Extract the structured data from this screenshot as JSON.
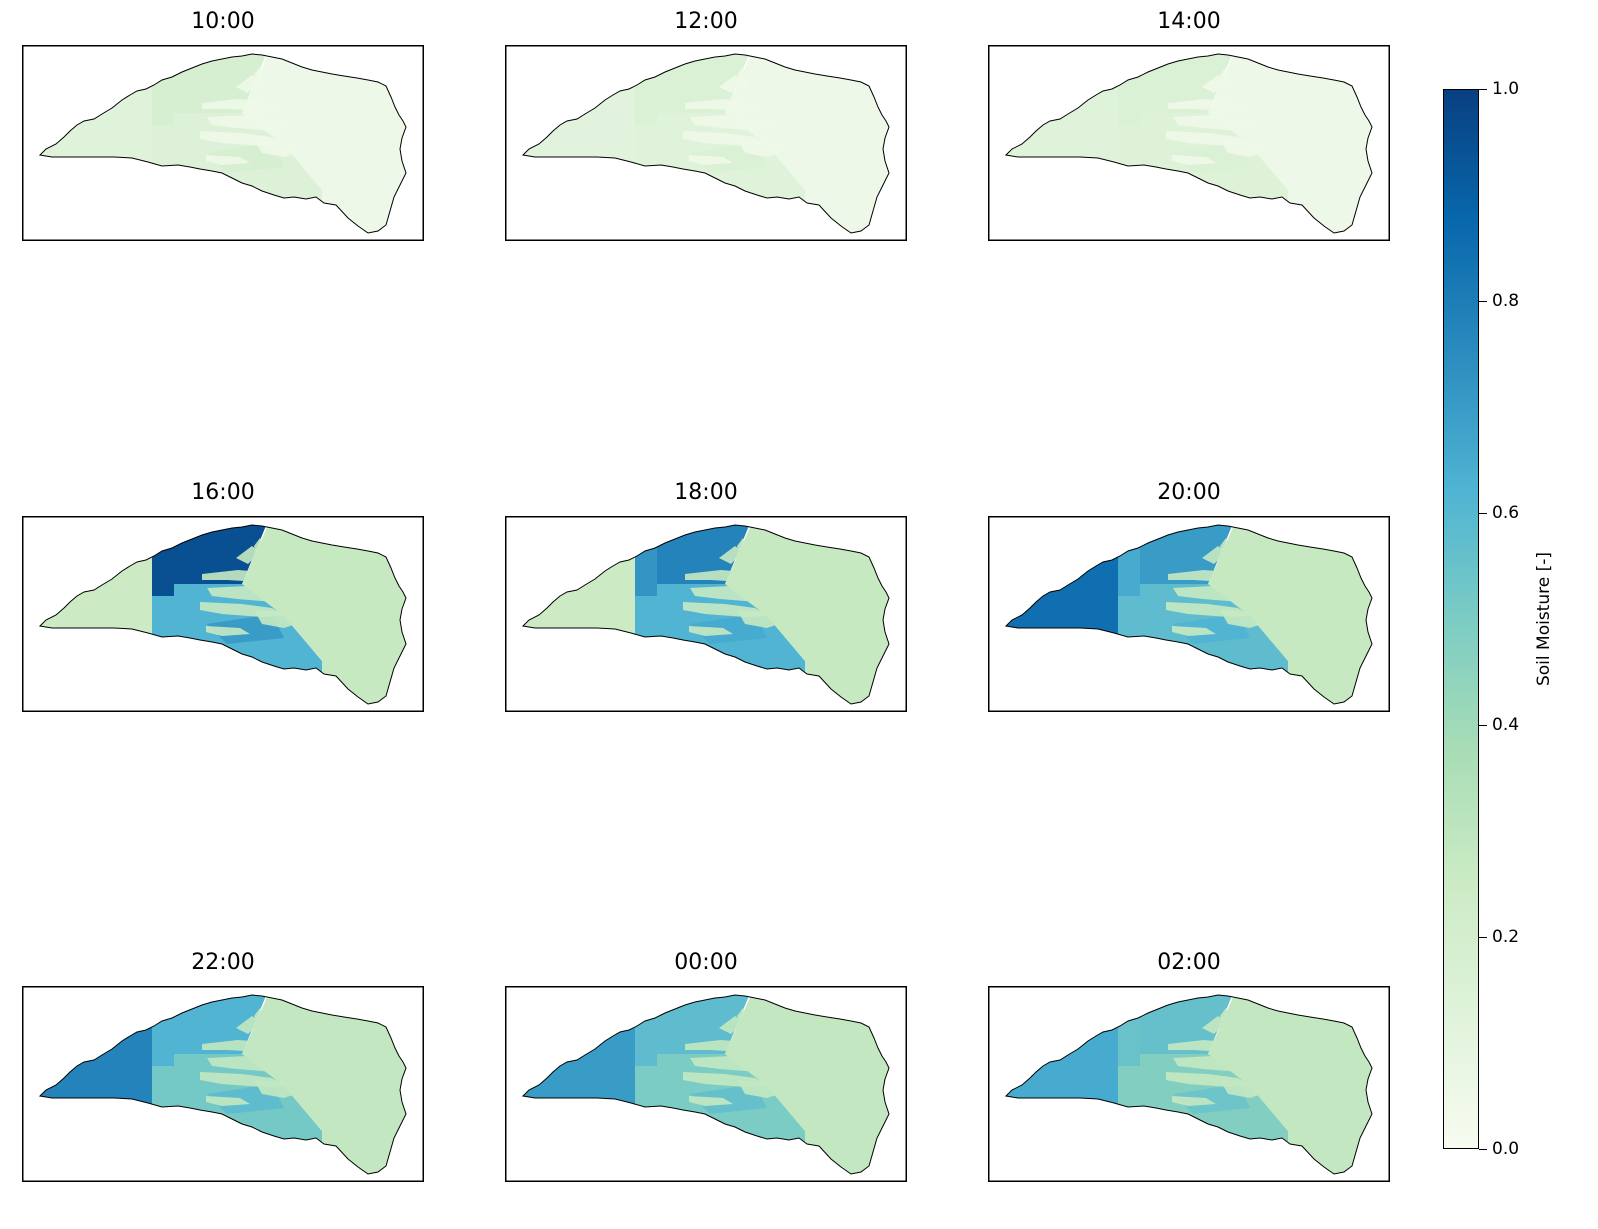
{
  "chart_data": {
    "type": "heatmap",
    "panels": [
      {
        "title": "10:00",
        "values": {
          "A": 0.13,
          "B": 0.18,
          "C": 0.15,
          "D": 0.05,
          "E": 0.18,
          "F": 0.05,
          "G": 0.18
        }
      },
      {
        "title": "12:00",
        "values": {
          "A": 0.12,
          "B": 0.16,
          "C": 0.13,
          "D": 0.05,
          "E": 0.16,
          "F": 0.05,
          "G": 0.16
        }
      },
      {
        "title": "14:00",
        "values": {
          "A": 0.13,
          "B": 0.16,
          "C": 0.14,
          "D": 0.06,
          "E": 0.16,
          "F": 0.05,
          "G": 0.16
        }
      },
      {
        "title": "16:00",
        "values": {
          "A": 0.25,
          "B": 0.95,
          "C": 0.62,
          "D": 0.8,
          "E": 0.7,
          "F": 0.27,
          "G": 0.95
        }
      },
      {
        "title": "18:00",
        "values": {
          "A": 0.25,
          "B": 0.78,
          "C": 0.62,
          "D": 0.65,
          "E": 0.65,
          "F": 0.27,
          "G": 0.72
        }
      },
      {
        "title": "20:00",
        "values": {
          "A": 0.85,
          "B": 0.7,
          "C": 0.58,
          "D": 0.6,
          "E": 0.62,
          "F": 0.27,
          "G": 0.65
        }
      },
      {
        "title": "22:00",
        "values": {
          "A": 0.78,
          "B": 0.62,
          "C": 0.52,
          "D": 0.55,
          "E": 0.58,
          "F": 0.28,
          "G": 0.62
        }
      },
      {
        "title": "00:00",
        "values": {
          "A": 0.7,
          "B": 0.58,
          "C": 0.5,
          "D": 0.52,
          "E": 0.56,
          "F": 0.28,
          "G": 0.58
        }
      },
      {
        "title": "02:00",
        "values": {
          "A": 0.65,
          "B": 0.56,
          "C": 0.48,
          "D": 0.5,
          "E": 0.54,
          "F": 0.28,
          "G": 0.55
        }
      }
    ],
    "colorbar": {
      "label": "Soil Moisture [-]",
      "range": [
        0.0,
        1.0
      ],
      "ticks": [
        "0.0",
        "0.2",
        "0.4",
        "0.6",
        "0.8",
        "1.0"
      ],
      "colormap": [
        "#f7fcf0",
        "#e0f3db",
        "#ccebc5",
        "#a8ddb5",
        "#7bccc4",
        "#4eb3d3",
        "#2b8cbe",
        "#0868ac",
        "#084081"
      ]
    }
  }
}
